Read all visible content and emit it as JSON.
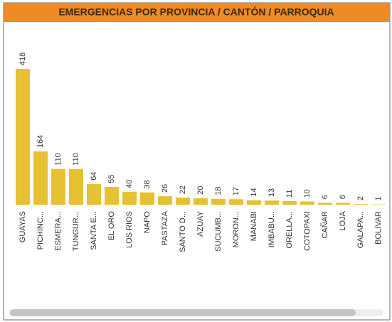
{
  "chart_data": {
    "type": "bar",
    "title": "EMERGENCIAS POR PROVINCIA / CANTÓN / PARROQUIA",
    "categories": [
      "GUAYAS",
      "PICHINC...",
      "ESMERA...",
      "TUNGUR...",
      "SANTA E...",
      "EL ORO",
      "LOS RIOS",
      "NAPO",
      "PASTAZA",
      "SANTO D...",
      "AZUAY",
      "SUCUMB...",
      "MORON...",
      "MANABI",
      "IMBABU...",
      "ORELLA...",
      "COTOPAXI",
      "CAÑAR",
      "LOJA",
      "GALAPA...",
      "BOLIVAR"
    ],
    "values": [
      418,
      164,
      110,
      110,
      64,
      55,
      40,
      38,
      26,
      22,
      20,
      18,
      17,
      14,
      13,
      11,
      10,
      6,
      6,
      2,
      1
    ],
    "color": "#e6c233"
  }
}
